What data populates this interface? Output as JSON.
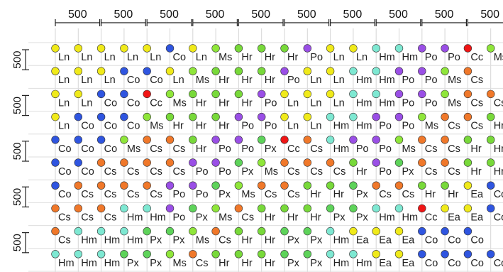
{
  "scale": {
    "top_labels": [
      "500",
      "500",
      "500",
      "500",
      "500",
      "500",
      "500",
      "500",
      "500",
      "500"
    ],
    "left_labels": [
      "500",
      "500",
      "500",
      "500",
      "500"
    ]
  },
  "colors": {
    "Ln": "#f0ea1a",
    "Co": "#2f55e0",
    "Ms": "#8fe63a",
    "Hr": "#78d93a",
    "Po": "#9a4fe6",
    "Cc": "#f01515",
    "Hm": "#7ee8d2",
    "Cs": "#f0782a",
    "Px": "#5ed35a",
    "Ea": "#f0ea1a"
  },
  "rows": [
    [
      "Ln",
      "Ln",
      "Ln",
      "Ln",
      "Ln",
      "Co",
      "Ln",
      "Ms",
      "Hr",
      "Hr",
      "Hr",
      "Po",
      "Ln",
      "Ln",
      "Hm",
      "Hm",
      "Po",
      "Po",
      "Cc",
      "Ms"
    ],
    [
      "Ln",
      "Ln",
      "Ln",
      "Co",
      "Co",
      "Ln",
      "Ms",
      "Hr",
      "Hr",
      "Hr",
      "Po",
      "Ln",
      "Ln",
      "Hm",
      "Hm",
      "Po",
      "Po",
      "Ms",
      "Cs"
    ],
    [
      "Ln",
      "Ln",
      "Co",
      "Co",
      "Cc",
      "Ms",
      "Hr",
      "Hr",
      "Hr",
      "Po",
      "Ln",
      "Ln",
      "Ln",
      "Hm",
      "Hm",
      "Po",
      "Po",
      "Ms",
      "Cs",
      "Cs"
    ],
    [
      "Ln",
      "Co",
      "Co",
      "Co",
      "Ms",
      "Hr",
      "Hr",
      "Hr",
      "Po",
      "Po",
      "Ln",
      "Ln",
      "Hm",
      "Hm",
      "Po",
      "Po",
      "Ms",
      "Cs",
      "Cs",
      "Hr"
    ],
    [
      "Co",
      "Co",
      "Co",
      "Ms",
      "Cs",
      "Cs",
      "Hr",
      "Po",
      "Po",
      "Px",
      "Cc",
      "Cs",
      "Hm",
      "Po",
      "Po",
      "Ms",
      "Cs",
      "Cs",
      "Hr",
      "Hr"
    ],
    [
      "Co",
      "Co",
      "Cs",
      "Cs",
      "Cs",
      "Cs",
      "Po",
      "Po",
      "Px",
      "Ms",
      "Cs",
      "Cs",
      "Cs",
      "Hr",
      "Po",
      "Px",
      "Cs",
      "Cs",
      "Hr",
      "Hr",
      "Ea"
    ],
    [
      "Co",
      "Cs",
      "Cs",
      "Cs",
      "Cs",
      "Po",
      "Po",
      "Px",
      "Ms",
      "Cs",
      "Cs",
      "Hr",
      "Hr",
      "Px",
      "Cs",
      "Cs",
      "Hr",
      "Hr",
      "Ea",
      "Co"
    ],
    [
      "Cs",
      "Cs",
      "Cs",
      "Hm",
      "Hm",
      "Po",
      "Px",
      "Ms",
      "Cs",
      "Hr",
      "Hr",
      "Hr",
      "Px",
      "Px",
      "Hm",
      "Hm",
      "Cc",
      "Ea",
      "Ea",
      "Co"
    ],
    [
      "Cs",
      "Hm",
      "Hm",
      "Hm",
      "Px",
      "Px",
      "Ms",
      "Cs",
      "Hr",
      "Hr",
      "Px",
      "Px",
      "Hm",
      "Ea",
      "Ea",
      "Ea",
      "Co",
      "Co",
      "Co"
    ],
    [
      "Hm",
      "Hm",
      "Hm",
      "Px",
      "Px",
      "Ms",
      "Cs",
      "Hr",
      "Hr",
      "Hr",
      "Px",
      "Px",
      "Hm",
      "Hm",
      "Ea",
      "Ea",
      "Co",
      "Co",
      "Co",
      "Co"
    ]
  ]
}
